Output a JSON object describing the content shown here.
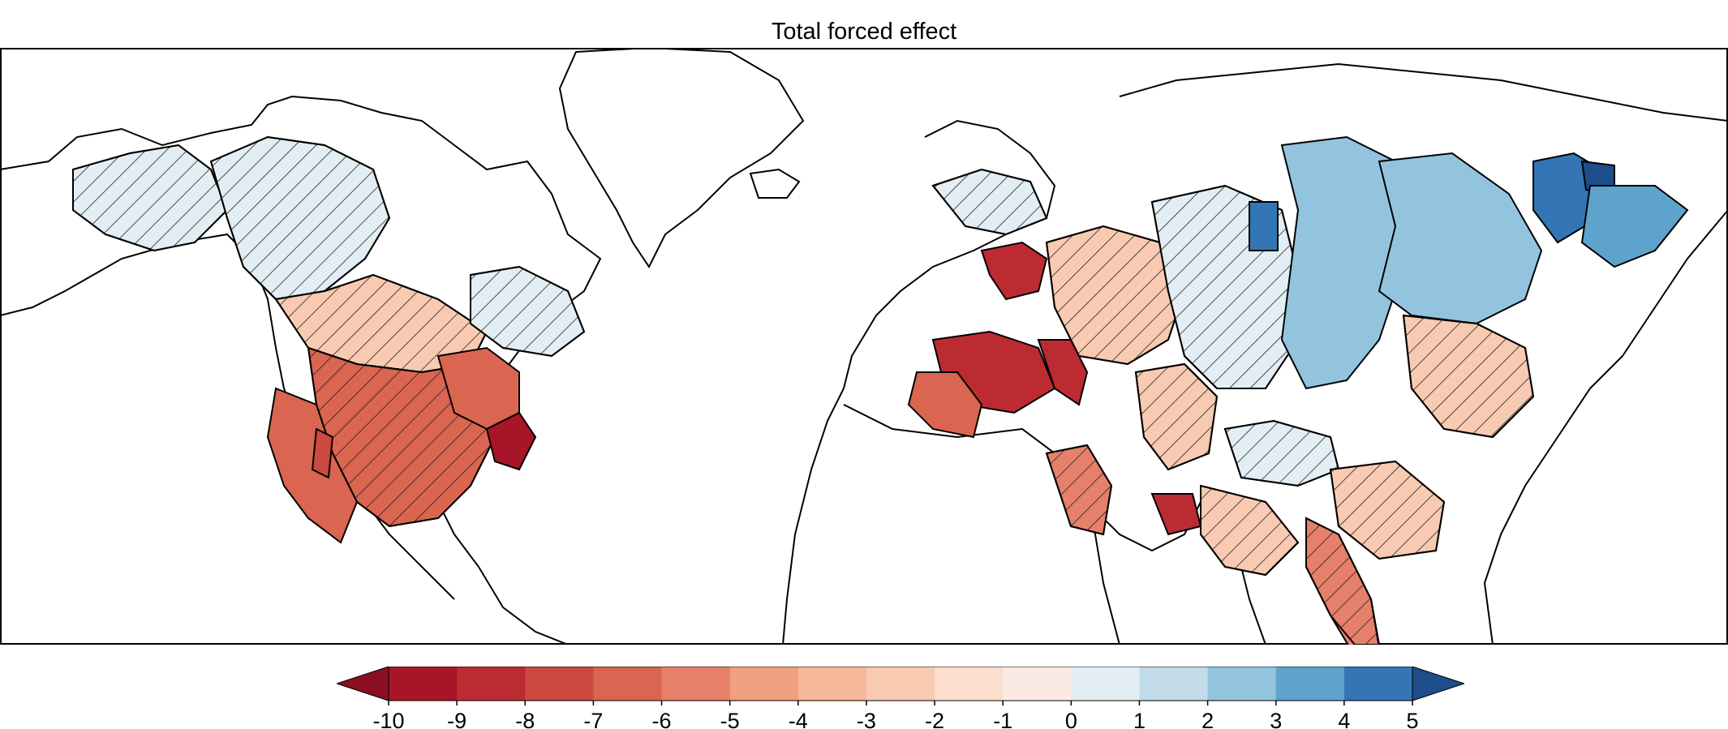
{
  "title": "Total forced effect",
  "colorbar": {
    "tick_labels": [
      "-10",
      "-9",
      "-8",
      "-7",
      "-6",
      "-5",
      "-4",
      "-3",
      "-2",
      "-1",
      "0",
      "1",
      "2",
      "3",
      "4",
      "5"
    ],
    "colors": [
      "#a81528",
      "#bd2b32",
      "#cc4940",
      "#da6550",
      "#e6806a",
      "#f0a07e",
      "#f6b69a",
      "#f9cab2",
      "#fcdecd",
      "#fbeae4",
      "#e3eef4",
      "#c3dce9",
      "#93c4de",
      "#5ea3cb",
      "#3375b5",
      "#1d4e8b"
    ],
    "extend_low_color": "#8b0f20",
    "extend_high_color": "#1d4e8b"
  },
  "hatch_meaning_shown": false
}
